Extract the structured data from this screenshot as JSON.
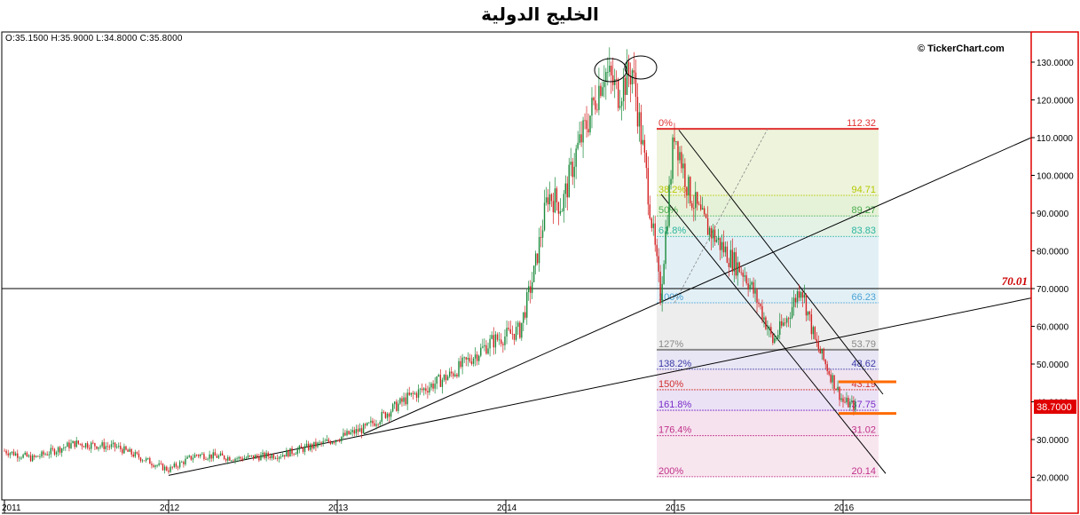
{
  "header": {
    "title": "الخليج الدولية",
    "ohlc": "O:35.1500   H:35.9000   L:34.8000   C:35.8000",
    "watermark": "© TickerChart.com"
  },
  "chart_data": {
    "type": "candlestick",
    "title": "الخليج الدولية",
    "ylim": [
      14,
      138
    ],
    "y_ticks": [
      "130.0000",
      "120.0000",
      "110.0000",
      "100.0000",
      "90.0000",
      "80.0000",
      "70.0000",
      "60.0000",
      "50.0000",
      "40.0000",
      "30.0000",
      "20.0000"
    ],
    "y_tick_values": [
      130,
      120,
      110,
      100,
      90,
      80,
      70,
      60,
      50,
      40,
      30,
      20
    ],
    "x_ticks": [
      "2011",
      "2012",
      "2013",
      "2014",
      "2015",
      "2016"
    ],
    "last_price": {
      "label": "38.7000",
      "value": 38.7,
      "color": "#e00000"
    },
    "horizontal_line": {
      "label": "70.01",
      "value": 70.01,
      "color": "#cc0000"
    },
    "price_path": [
      [
        "2011-01",
        27
      ],
      [
        "2011-03",
        25
      ],
      [
        "2011-06",
        29
      ],
      [
        "2011-09",
        28
      ],
      [
        "2011-12",
        23
      ],
      [
        "2012-01",
        22
      ],
      [
        "2012-03",
        26
      ],
      [
        "2012-06",
        25
      ],
      [
        "2012-09",
        26
      ],
      [
        "2012-12",
        29
      ],
      [
        "2013-03",
        33
      ],
      [
        "2013-06",
        41
      ],
      [
        "2013-09",
        47
      ],
      [
        "2013-12",
        56
      ],
      [
        "2014-02",
        59
      ],
      [
        "2014-03",
        74
      ],
      [
        "2014-04",
        95
      ],
      [
        "2014-05",
        92
      ],
      [
        "2014-06",
        106
      ],
      [
        "2014-07",
        116
      ],
      [
        "2014-08",
        128
      ],
      [
        "2014-09",
        122
      ],
      [
        "2014-10",
        128
      ],
      [
        "2014-11",
        100
      ],
      [
        "2014-12",
        68
      ],
      [
        "2015-01",
        112
      ],
      [
        "2015-02",
        96
      ],
      [
        "2015-03",
        88
      ],
      [
        "2015-04",
        83
      ],
      [
        "2015-05",
        78
      ],
      [
        "2015-06",
        74
      ],
      [
        "2015-07",
        66
      ],
      [
        "2015-08",
        56
      ],
      [
        "2015-09",
        62
      ],
      [
        "2015-10",
        71
      ],
      [
        "2015-11",
        56
      ],
      [
        "2015-12",
        48
      ],
      [
        "2016-01",
        40
      ],
      [
        "2016-02",
        38.7
      ]
    ],
    "fibonacci": {
      "high": 112.32,
      "low": 66.23,
      "levels": [
        {
          "pct": "0%",
          "value": "112.32",
          "price": 112.32,
          "color": "#e03030",
          "fill": "#eef4dc"
        },
        {
          "pct": "38.2%",
          "value": "94.71",
          "price": 94.71,
          "color": "#b6c800",
          "fill": "#e6f2d8"
        },
        {
          "pct": "50%",
          "value": "89.27",
          "price": 89.27,
          "color": "#4caf50",
          "fill": "#e4f2e6"
        },
        {
          "pct": "61.8%",
          "value": "83.83",
          "price": 83.83,
          "color": "#2bb5a0",
          "fill": "#e2f0f6"
        },
        {
          "pct": "100%",
          "value": "66.23",
          "price": 66.23,
          "color": "#4aa3d6",
          "fill": "#ededed"
        },
        {
          "pct": "127%",
          "value": "53.79",
          "price": 53.79,
          "color": "#888888",
          "fill": "#e8e6f4"
        },
        {
          "pct": "138.2%",
          "value": "48.62",
          "price": 48.62,
          "color": "#3a3aa8",
          "fill": "#f0e4f0"
        },
        {
          "pct": "150%",
          "value": "43.19",
          "price": 43.19,
          "color": "#d03030",
          "fill": "#ebe2f6"
        },
        {
          "pct": "161.8%",
          "value": "37.75",
          "price": 37.75,
          "color": "#7a2cc8",
          "fill": "#f6e2ee"
        },
        {
          "pct": "176.4%",
          "value": "31.02",
          "price": 31.02,
          "color": "#c0308a",
          "fill": "#f8e6ef"
        },
        {
          "pct": "200%",
          "value": "20.14",
          "price": 20.14,
          "color": "#c0308a",
          "fill": "#f8e6ef"
        }
      ]
    },
    "grid": false,
    "colors": {
      "up": "#1a8a3a",
      "down": "#d42020",
      "accent": "#ff6a00"
    }
  }
}
